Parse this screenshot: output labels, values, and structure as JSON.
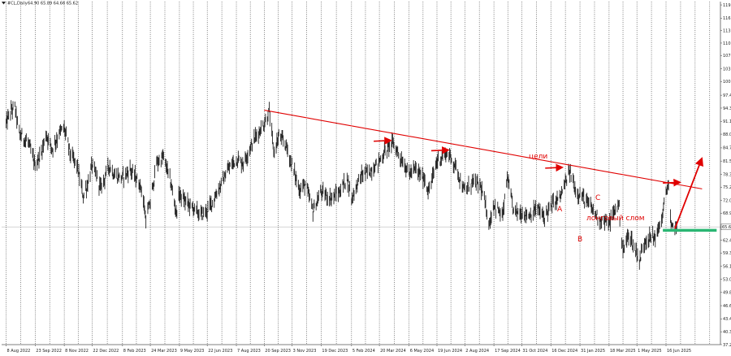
{
  "header": {
    "symbol": "#CL,Daily",
    "ohlc": "64.90 65.89 64.66 65.62",
    "icon": "triangle-down-icon"
  },
  "colors": {
    "candles": "#222222",
    "grid": "#333333",
    "trendline": "#e00000",
    "support": "#2bb673",
    "current_price_line": "#bbbbbb",
    "price_tag": "#ffffff"
  },
  "chart_data": {
    "type": "candlestick",
    "instrument": "#CL",
    "timeframe": "Daily",
    "grid": true,
    "y_scale": "linear",
    "ylim": [
      37.2,
      120.0
    ],
    "y_ticks": [
      "119.2",
      "116.0",
      "113.0",
      "110.0",
      "107.0",
      "103.8",
      "100.7",
      "97.4",
      "94.3",
      "91.1",
      "88.0",
      "84.7",
      "81.5",
      "78.3",
      "75.2",
      "72.0",
      "68.9",
      "65.6",
      "62.4",
      "59.3",
      "56.1",
      "53.0",
      "49.8",
      "46.6",
      "43.4",
      "40.3",
      "37.2"
    ],
    "x_ticks": [
      "8 Aug 2022",
      "23 Sep 2022",
      "8 Nov 2022",
      "22 Dec 2022",
      "8 Feb 2023",
      "24 Mar 2023",
      "9 May 2023",
      "22 Jun 2023",
      "7 Aug 2023",
      "20 Sep 2023",
      "3 Nov 2023",
      "19 Dec 2023",
      "5 Feb 2024",
      "20 Mar 2024",
      "6 May 2024",
      "19 Jun 2024",
      "2 Aug 2024",
      "17 Sep 2024",
      "31 Oct 2024",
      "16 Dec 2024",
      "31 Jan 2025",
      "18 Mar 2025",
      "1 May 2025",
      "16 Jun 2025"
    ],
    "current_price": 65.62,
    "current_price_label": "65.62",
    "price_series": [
      [
        "8 Aug 2022",
        90.5
      ],
      [
        "15 Aug 2022",
        93.5
      ],
      [
        "22 Aug 2022",
        94.5
      ],
      [
        "29 Aug 2022",
        88.0
      ],
      [
        "12 Sep 2022",
        86.0
      ],
      [
        "23 Sep 2022",
        80.5
      ],
      [
        "3 Oct 2022",
        83.5
      ],
      [
        "10 Oct 2022",
        88.0
      ],
      [
        "20 Oct 2022",
        84.5
      ],
      [
        "1 Nov 2022",
        88.5
      ],
      [
        "8 Nov 2022",
        89.5
      ],
      [
        "18 Nov 2022",
        83.0
      ],
      [
        "28 Nov 2022",
        80.5
      ],
      [
        "8 Dec 2022",
        73.0
      ],
      [
        "15 Dec 2022",
        76.0
      ],
      [
        "22 Dec 2022",
        80.5
      ],
      [
        "5 Jan 2023",
        75.0
      ],
      [
        "18 Jan 2023",
        80.5
      ],
      [
        "27 Jan 2023",
        78.0
      ],
      [
        "8 Feb 2023",
        77.5
      ],
      [
        "20 Feb 2023",
        79.5
      ],
      [
        "1 Mar 2023",
        77.5
      ],
      [
        "10 Mar 2023",
        75.0
      ],
      [
        "17 Mar 2023",
        67.5
      ],
      [
        "24 Mar 2023",
        71.5
      ],
      [
        "3 Apr 2023",
        81.0
      ],
      [
        "14 Apr 2023",
        82.5
      ],
      [
        "25 Apr 2023",
        76.5
      ],
      [
        "4 May 2023",
        69.0
      ],
      [
        "9 May 2023",
        73.5
      ],
      [
        "20 May 2023",
        71.5
      ],
      [
        "1 Jun 2023",
        70.0
      ],
      [
        "12 Jun 2023",
        68.5
      ],
      [
        "22 Jun 2023",
        69.5
      ],
      [
        "3 Jul 2023",
        72.5
      ],
      [
        "14 Jul 2023",
        76.0
      ],
      [
        "25 Jul 2023",
        79.5
      ],
      [
        "7 Aug 2023",
        82.0
      ],
      [
        "18 Aug 2023",
        81.0
      ],
      [
        "28 Aug 2023",
        84.5
      ],
      [
        "7 Sep 2023",
        87.5
      ],
      [
        "20 Sep 2023",
        90.5
      ],
      [
        "28 Sep 2023",
        93.5
      ],
      [
        "5 Oct 2023",
        83.5
      ],
      [
        "13 Oct 2023",
        87.5
      ],
      [
        "24 Oct 2023",
        85.5
      ],
      [
        "3 Nov 2023",
        80.5
      ],
      [
        "15 Nov 2023",
        74.5
      ],
      [
        "24 Nov 2023",
        76.0
      ],
      [
        "6 Dec 2023",
        69.5
      ],
      [
        "19 Dec 2023",
        74.0
      ],
      [
        "3 Jan 2024",
        72.5
      ],
      [
        "17 Jan 2024",
        74.0
      ],
      [
        "29 Jan 2024",
        77.5
      ],
      [
        "5 Feb 2024",
        72.5
      ],
      [
        "20 Feb 2024",
        78.0
      ],
      [
        "5 Mar 2024",
        79.0
      ],
      [
        "20 Mar 2024",
        81.5
      ],
      [
        "1 Apr 2024",
        84.5
      ],
      [
        "10 Apr 2024",
        86.0
      ],
      [
        "22 Apr 2024",
        82.5
      ],
      [
        "6 May 2024",
        78.5
      ],
      [
        "16 May 2024",
        79.5
      ],
      [
        "31 May 2024",
        77.0
      ],
      [
        "6 Jun 2024",
        74.0
      ],
      [
        "19 Jun 2024",
        81.5
      ],
      [
        "5 Jul 2024",
        83.5
      ],
      [
        "18 Jul 2024",
        80.5
      ],
      [
        "2 Aug 2024",
        74.0
      ],
      [
        "14 Aug 2024",
        76.5
      ],
      [
        "27 Aug 2024",
        75.5
      ],
      [
        "10 Sep 2024",
        66.5
      ],
      [
        "17 Sep 2024",
        71.0
      ],
      [
        "1 Oct 2024",
        68.0
      ],
      [
        "8 Oct 2024",
        77.5
      ],
      [
        "18 Oct 2024",
        69.5
      ],
      [
        "31 Oct 2024",
        69.0
      ],
      [
        "12 Nov 2024",
        68.5
      ],
      [
        "25 Nov 2024",
        70.0
      ],
      [
        "5 Dec 2024",
        68.0
      ],
      [
        "16 Dec 2024",
        70.5
      ],
      [
        "31 Dec 2024",
        73.0
      ],
      [
        "15 Jan 2025",
        79.0
      ],
      [
        "24 Jan 2025",
        74.5
      ],
      [
        "31 Jan 2025",
        73.5
      ],
      [
        "14 Feb 2025",
        71.0
      ],
      [
        "3 Mar 2025",
        67.5
      ],
      [
        "18 Mar 2025",
        66.5
      ],
      [
        "2 Apr 2025",
        71.5
      ],
      [
        "9 Apr 2025",
        59.5
      ],
      [
        "18 Apr 2025",
        64.0
      ],
      [
        "5 May 2025",
        57.5
      ],
      [
        "14 May 2025",
        62.5
      ],
      [
        "1 Jun 2025",
        63.5
      ],
      [
        "11 Jun 2025",
        68.5
      ],
      [
        "16 Jun 2025",
        74.5
      ],
      [
        "20 Jun 2025",
        75.5
      ],
      [
        "24 Jun 2025",
        65.0
      ],
      [
        "30 Jun 2025",
        66.0
      ],
      [
        "3 Jul 2025",
        65.62
      ]
    ],
    "annotations": {
      "trendline_label": "цели",
      "support_label": "лонговый слом",
      "point_a": "A",
      "point_b": "B",
      "point_c": "C",
      "trendline": [
        [
          "20 Sep 2023",
          93.8
        ],
        [
          "12 Aug 2025",
          74.8
        ]
      ],
      "support_level": 64.8,
      "projection_arrow": [
        [
          "30 Jun 2025",
          65.2
        ],
        [
          "10 Aug 2025",
          81.5
        ]
      ],
      "target_markers": [
        [
          "20 Mar 2024",
          86.3
        ],
        [
          "19 Jun 2024",
          84.0
        ],
        [
          "16 Dec 2024",
          79.8
        ],
        [
          "20 Jun 2025",
          76.2
        ]
      ]
    }
  }
}
